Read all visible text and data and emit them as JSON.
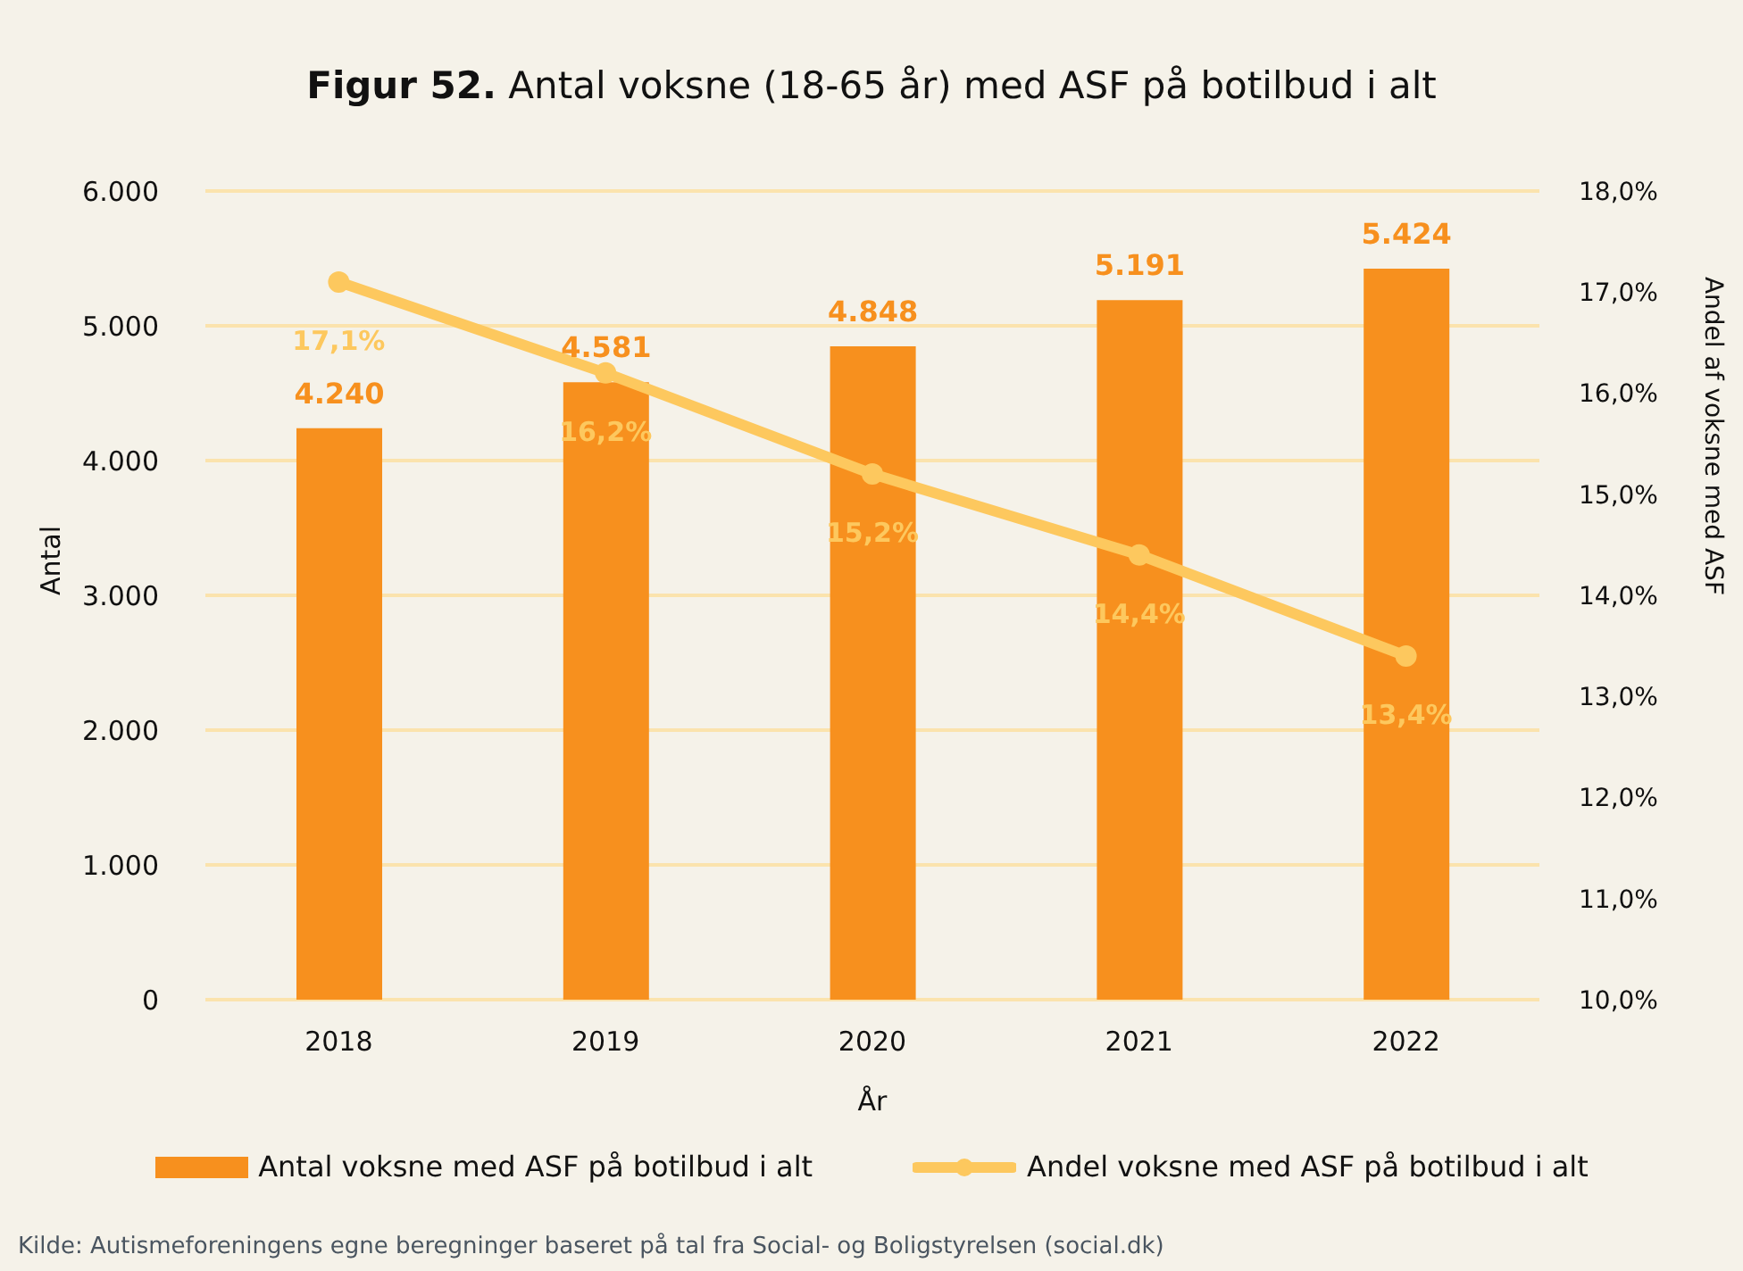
{
  "chart_data": {
    "type": "bar",
    "title": "Figur 52. Antal voksne (18-65 år) med ASF på botilbud i alt",
    "xlabel": "År",
    "ylabel": "Antal",
    "y2label": "Andel af voksne med ASF",
    "categories": [
      "2018",
      "2019",
      "2020",
      "2021",
      "2022"
    ],
    "series": [
      {
        "name": "Antal voksne med ASF på botilbud i alt",
        "color": "#f7901e",
        "values": [
          4240,
          4581,
          4848,
          5191,
          5424
        ],
        "value_labels": [
          "4.240",
          "4.581",
          "4.848",
          "5.191",
          "5.424"
        ]
      },
      {
        "name": "Andel voksne med ASF på botilbud i alt",
        "type": "line",
        "axis": "y2",
        "color": "#fdc85e",
        "marker": "circle",
        "values": [
          17.1,
          16.2,
          15.2,
          14.4,
          13.4
        ],
        "value_labels": [
          "17,1%",
          "16,2%",
          "15,2%",
          "14,4%",
          "13,4%"
        ]
      }
    ],
    "ylim": [
      0,
      6000
    ],
    "yticks": [
      {
        "value": 0,
        "label": "0"
      },
      {
        "value": 1000,
        "label": "1.000"
      },
      {
        "value": 2000,
        "label": "2.000"
      },
      {
        "value": 3000,
        "label": "3.000"
      },
      {
        "value": 4000,
        "label": "4.000"
      },
      {
        "value": 5000,
        "label": "5.000"
      },
      {
        "value": 6000,
        "label": "6.000"
      }
    ],
    "y2lim": [
      10,
      18
    ],
    "y2ticks": [
      {
        "value": 10,
        "label": "10,0%"
      },
      {
        "value": 11,
        "label": "11,0%"
      },
      {
        "value": 12,
        "label": "12,0%"
      },
      {
        "value": 13,
        "label": "13,0%"
      },
      {
        "value": 14,
        "label": "14,0%"
      },
      {
        "value": 15,
        "label": "15,0%"
      },
      {
        "value": 16,
        "label": "16,0%"
      },
      {
        "value": 17,
        "label": "17,0%"
      },
      {
        "value": 18,
        "label": "18,0%"
      }
    ],
    "grid": "y",
    "legend": "bottom",
    "annotations": [
      "Kilde: Autismeforeningens egne beregninger baseret på tal fra Social- og Boligstyrelsen (social.dk)"
    ]
  }
}
